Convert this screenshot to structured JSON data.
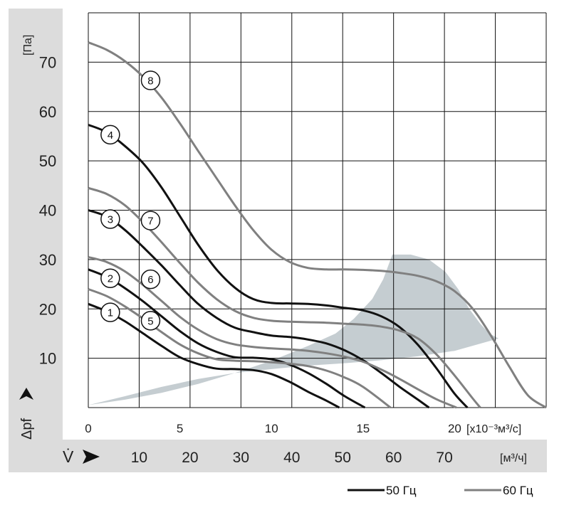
{
  "chart_data": {
    "type": "line",
    "y_axis": {
      "unit_label": "[Па]",
      "symbol": "Δpf",
      "ticks": [
        "10",
        "20",
        "30",
        "40",
        "50",
        "60",
        "70"
      ],
      "ylim": [
        0,
        80
      ]
    },
    "x_axis": {
      "symbol": "V̇",
      "primary_unit": "[x10⁻³м³/с]",
      "primary_ticks": [
        "0",
        "5",
        "10",
        "15",
        "20"
      ],
      "primary_tick_values": [
        0,
        5,
        10,
        15,
        20
      ],
      "secondary_unit": "[м³/ч]",
      "secondary_ticks": [
        "10",
        "20",
        "30",
        "40",
        "50",
        "60",
        "70"
      ],
      "secondary_tick_values": [
        10,
        20,
        30,
        40,
        50,
        60,
        70
      ],
      "xlim": [
        0,
        25
      ]
    },
    "grid": true,
    "legend": {
      "placement": "bottom-right",
      "entries": [
        {
          "label": "50 Гц",
          "color": "#111111"
        },
        {
          "label": "60 Гц",
          "color": "#808080"
        }
      ]
    },
    "series": [
      {
        "name": "1",
        "frequency": "50 Гц",
        "x": [
          0,
          1,
          2,
          3,
          4,
          5,
          6,
          7,
          8,
          9,
          10,
          11,
          12,
          13,
          13.7
        ],
        "y": [
          21,
          19.5,
          17.5,
          15,
          12.5,
          10.2,
          8.8,
          7.9,
          7.8,
          7.6,
          6.8,
          5.2,
          3.2,
          1.4,
          0
        ]
      },
      {
        "name": "2",
        "frequency": "50 Гц",
        "x": [
          0,
          1,
          2,
          3,
          4,
          5,
          6,
          7,
          8,
          9,
          10,
          11,
          12,
          13,
          14,
          15.1
        ],
        "y": [
          28,
          26.5,
          24.2,
          21.5,
          18.5,
          15.5,
          13,
          11.3,
          10.2,
          10.1,
          9.8,
          8.7,
          7,
          4.8,
          2.3,
          0
        ]
      },
      {
        "name": "3",
        "frequency": "50 Гц",
        "x": [
          0,
          1,
          2,
          3,
          4,
          5,
          6,
          7,
          8,
          9,
          10,
          11,
          12,
          13,
          14,
          15,
          16,
          17,
          18,
          18.6
        ],
        "y": [
          40,
          38.7,
          36,
          32.5,
          28.8,
          24.8,
          21,
          18.2,
          16.2,
          15.3,
          14.6,
          14.3,
          13.8,
          13,
          11.6,
          9.6,
          7,
          4.2,
          1.6,
          0
        ]
      },
      {
        "name": "4",
        "frequency": "50 Гц",
        "x": [
          0,
          1,
          2,
          3,
          4,
          5,
          6,
          7,
          8,
          9,
          10,
          11,
          12,
          13,
          14,
          15,
          16,
          17,
          18,
          19,
          20,
          20.7
        ],
        "y": [
          57.3,
          55.8,
          53,
          49.5,
          44.6,
          38.8,
          33,
          28,
          24.3,
          22,
          21.2,
          21.1,
          21,
          20.7,
          20.2,
          19.7,
          18.5,
          16.3,
          12.7,
          8,
          2.8,
          0
        ]
      },
      {
        "name": "5",
        "frequency": "60 Гц",
        "x": [
          0,
          1,
          2,
          3,
          4,
          5,
          6,
          7,
          8,
          9,
          10,
          11,
          12,
          13,
          14,
          15,
          16.5
        ],
        "y": [
          24,
          22.6,
          20.5,
          18,
          15.3,
          12.8,
          11,
          9.8,
          9.5,
          9.4,
          9.2,
          8.9,
          8.4,
          7.5,
          6.1,
          4.2,
          0
        ]
      },
      {
        "name": "6",
        "frequency": "60 Гц",
        "x": [
          0,
          1,
          2,
          3,
          4,
          5,
          6,
          7,
          8,
          9,
          10,
          11,
          12,
          13,
          14,
          15,
          16,
          17,
          18,
          19,
          20.1
        ],
        "y": [
          30.5,
          29.5,
          27.6,
          24.8,
          21.6,
          18.4,
          15.8,
          13.9,
          12.8,
          12.3,
          12,
          11.8,
          11.5,
          11,
          10.3,
          9.3,
          7.7,
          5.8,
          3.7,
          1.7,
          0
        ]
      },
      {
        "name": "7",
        "frequency": "60 Гц",
        "x": [
          0,
          1,
          2,
          3,
          4,
          5,
          6,
          7,
          8,
          9,
          10,
          11,
          12,
          13,
          14,
          15,
          16,
          17,
          18,
          19,
          20,
          21,
          21.4
        ],
        "y": [
          44.5,
          43.3,
          41,
          37.5,
          33.5,
          29.3,
          25.3,
          22,
          19.6,
          18.2,
          17.6,
          17.4,
          17.3,
          17.2,
          17,
          16.8,
          16.4,
          15.6,
          14,
          10.8,
          6.5,
          1.8,
          0
        ]
      },
      {
        "name": "8",
        "frequency": "60 Гц",
        "x": [
          0,
          1,
          2,
          3,
          4,
          5,
          6,
          7,
          8,
          9,
          10,
          11,
          12,
          13,
          14,
          15,
          16,
          17,
          18,
          19,
          20,
          21,
          22,
          23,
          24,
          25
        ],
        "y": [
          74,
          72.5,
          70.2,
          67,
          62.8,
          57.6,
          52,
          46.5,
          41,
          36,
          32,
          29.5,
          28.3,
          28,
          28,
          27.9,
          27.7,
          27.3,
          26.7,
          25.6,
          23.6,
          20,
          14.5,
          8.2,
          2.5,
          0
        ]
      }
    ],
    "shaded_region": {
      "color": "#c5cdd1",
      "upper": {
        "x": [
          0,
          2,
          4,
          6,
          8,
          10,
          12,
          13.5,
          14.5,
          15.5,
          16.1,
          16.6,
          17.6,
          18.6,
          19.5,
          20.2,
          20.8,
          21.4,
          21.9,
          22.4
        ],
        "y": [
          0.5,
          1.6,
          3,
          4.8,
          7,
          9.5,
          12.5,
          15,
          18,
          22,
          26,
          31,
          31,
          30,
          27.5,
          24,
          20,
          17,
          15,
          14
        ]
      },
      "lower": {
        "x": [
          22.4,
          20,
          18,
          16,
          14,
          12,
          10,
          8,
          6,
          4,
          2,
          0
        ],
        "y": [
          14,
          11.5,
          10.4,
          9.6,
          9,
          8.5,
          7.8,
          7,
          5.8,
          4.2,
          2.3,
          0.5
        ]
      }
    },
    "markers": [
      {
        "text": "1",
        "x": 1.2,
        "y": 19.3
      },
      {
        "text": "2",
        "x": 1.2,
        "y": 26.2
      },
      {
        "text": "3",
        "x": 1.2,
        "y": 38.2
      },
      {
        "text": "4",
        "x": 1.2,
        "y": 55.3
      },
      {
        "text": "5",
        "x": 3.4,
        "y": 17.6
      },
      {
        "text": "6",
        "x": 3.4,
        "y": 26.0
      },
      {
        "text": "7",
        "x": 3.4,
        "y": 37.9
      },
      {
        "text": "8",
        "x": 3.4,
        "y": 66.3
      }
    ]
  }
}
